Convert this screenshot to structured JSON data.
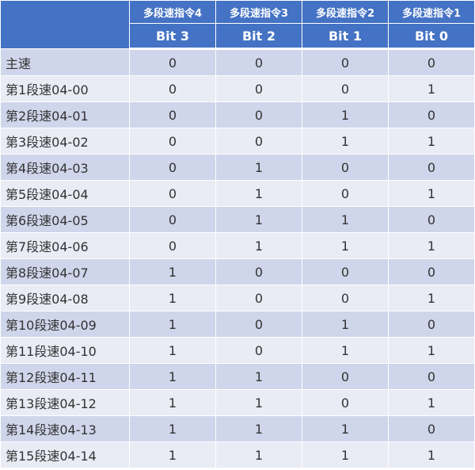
{
  "header": {
    "commands": [
      "多段速指令4",
      "多段速指令3",
      "多段速指令2",
      "多段速指令1"
    ],
    "bits": [
      "Bit 3",
      "Bit 2",
      "Bit 1",
      "Bit 0"
    ]
  },
  "rows": [
    {
      "label": "主速",
      "v": [
        "0",
        "0",
        "0",
        "0"
      ]
    },
    {
      "label": "第1段速04-00",
      "v": [
        "0",
        "0",
        "0",
        "1"
      ]
    },
    {
      "label": "第2段速04-01",
      "v": [
        "0",
        "0",
        "1",
        "0"
      ]
    },
    {
      "label": "第3段速04-02",
      "v": [
        "0",
        "0",
        "1",
        "1"
      ]
    },
    {
      "label": "第4段速04-03",
      "v": [
        "0",
        "1",
        "0",
        "0"
      ]
    },
    {
      "label": "第5段速04-04",
      "v": [
        "0",
        "1",
        "0",
        "1"
      ]
    },
    {
      "label": "第6段速04-05",
      "v": [
        "0",
        "1",
        "1",
        "0"
      ]
    },
    {
      "label": "第7段速04-06",
      "v": [
        "0",
        "1",
        "1",
        "1"
      ]
    },
    {
      "label": "第8段速04-07",
      "v": [
        "1",
        "0",
        "0",
        "0"
      ]
    },
    {
      "label": "第9段速04-08",
      "v": [
        "1",
        "0",
        "0",
        "1"
      ]
    },
    {
      "label": "第10段速04-09",
      "v": [
        "1",
        "0",
        "1",
        "0"
      ]
    },
    {
      "label": "第11段速04-10",
      "v": [
        "1",
        "0",
        "1",
        "1"
      ]
    },
    {
      "label": "第12段速04-11",
      "v": [
        "1",
        "1",
        "0",
        "0"
      ]
    },
    {
      "label": "第13段速04-12",
      "v": [
        "1",
        "1",
        "0",
        "1"
      ]
    },
    {
      "label": "第14段速04-13",
      "v": [
        "1",
        "1",
        "1",
        "0"
      ]
    },
    {
      "label": "第15段速04-14",
      "v": [
        "1",
        "1",
        "1",
        "1"
      ]
    }
  ]
}
